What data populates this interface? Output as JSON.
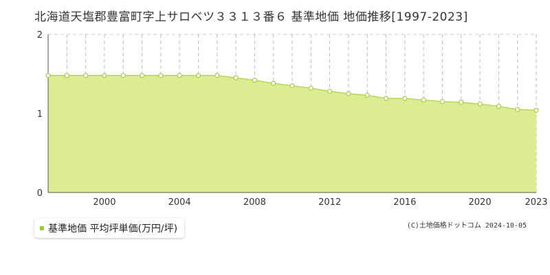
{
  "chart_data": {
    "type": "area",
    "title": "北海道天塩郡豊富町字上サロベツ３３１３番６ 基準地価 地価推移[1997-2023]",
    "x": [
      1997,
      1998,
      1999,
      2000,
      2001,
      2002,
      2003,
      2004,
      2005,
      2006,
      2007,
      2008,
      2009,
      2010,
      2011,
      2012,
      2013,
      2014,
      2015,
      2016,
      2017,
      2018,
      2019,
      2020,
      2021,
      2022,
      2023
    ],
    "series": [
      {
        "name": "基準地価 平均坪単価(万円/坪)",
        "values": [
          1.48,
          1.48,
          1.48,
          1.48,
          1.48,
          1.48,
          1.48,
          1.48,
          1.48,
          1.48,
          1.45,
          1.42,
          1.38,
          1.35,
          1.32,
          1.28,
          1.25,
          1.23,
          1.19,
          1.19,
          1.17,
          1.15,
          1.14,
          1.12,
          1.09,
          1.05,
          1.04
        ]
      }
    ],
    "xticks": [
      2000,
      2004,
      2008,
      2012,
      2016,
      2020,
      2023
    ],
    "yticks": [
      0,
      1,
      2
    ],
    "ylim": [
      0,
      2
    ],
    "xlim": [
      1997,
      2023
    ],
    "legend_position": "bottom-left",
    "grid": true,
    "colors": {
      "fill": "#dcec91",
      "line": "#b5d854",
      "marker_fill": "#ffffff",
      "marker_stroke": "#a8c94a"
    }
  },
  "credit": "(C)土地価格ドットコム 2024-10-05"
}
